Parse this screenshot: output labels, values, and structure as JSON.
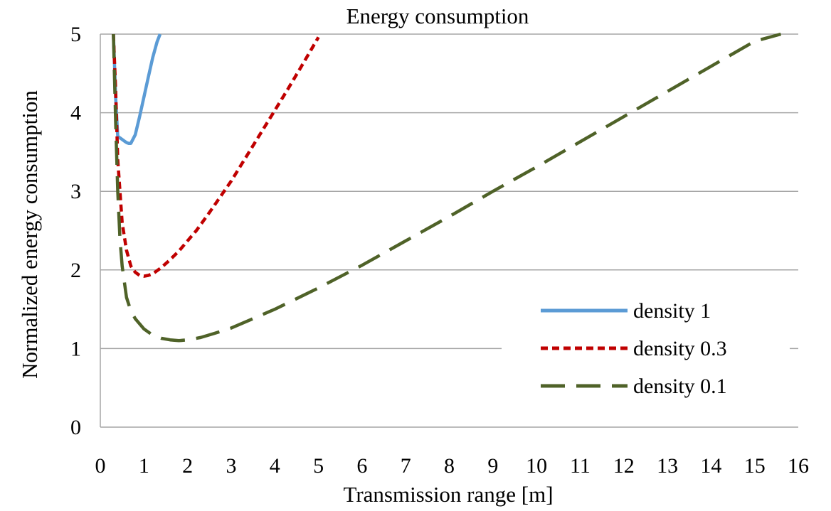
{
  "chart_data": {
    "type": "line",
    "title": "Energy consumption",
    "xlabel": "Transmission range [m]",
    "ylabel": "Normalized energy consumption",
    "xlim": [
      0,
      16
    ],
    "ylim": [
      0,
      5
    ],
    "xticks": [
      0,
      1,
      2,
      3,
      4,
      5,
      6,
      7,
      8,
      9,
      10,
      11,
      12,
      13,
      14,
      15,
      16
    ],
    "yticks": [
      0,
      1,
      2,
      3,
      4,
      5
    ],
    "grid": "horizontal",
    "legend_position": "right",
    "series": [
      {
        "name": "density 1",
        "color": "#5b9bd5",
        "style": "solid",
        "x": [
          0.3,
          0.32,
          0.35,
          0.4,
          0.45,
          0.5,
          0.55,
          0.6,
          0.65,
          0.7,
          0.8,
          0.9,
          1.0,
          1.1,
          1.2,
          1.3,
          1.37
        ],
        "y": [
          5.0,
          4.7,
          4.2,
          3.7,
          3.68,
          3.66,
          3.64,
          3.62,
          3.61,
          3.61,
          3.72,
          3.95,
          4.2,
          4.45,
          4.7,
          4.9,
          5.0
        ]
      },
      {
        "name": "density 0.3",
        "color": "#c00000",
        "style": "dash",
        "x": [
          0.3,
          0.35,
          0.4,
          0.5,
          0.6,
          0.7,
          0.8,
          0.9,
          1.0,
          1.1,
          1.2,
          1.4,
          1.6,
          1.8,
          2.0,
          2.2,
          2.5,
          2.8,
          3.0,
          3.3,
          3.6,
          4.0,
          4.3,
          4.6,
          5.0
        ],
        "y": [
          5.0,
          4.3,
          3.4,
          2.6,
          2.25,
          2.05,
          1.97,
          1.93,
          1.92,
          1.93,
          1.95,
          2.03,
          2.13,
          2.24,
          2.37,
          2.5,
          2.73,
          2.97,
          3.13,
          3.4,
          3.67,
          4.03,
          4.3,
          4.58,
          4.96
        ]
      },
      {
        "name": "density 0.1",
        "color": "#4f6228",
        "style": "longdash",
        "x": [
          0.3,
          0.35,
          0.4,
          0.45,
          0.5,
          0.6,
          0.7,
          0.8,
          1.0,
          1.2,
          1.4,
          1.6,
          1.8,
          2.0,
          2.3,
          2.6,
          3.0,
          3.5,
          4.0,
          5.0,
          6.0,
          7.0,
          8.0,
          9.0,
          10.0,
          11.0,
          12.0,
          13.0,
          14.0,
          15.0,
          15.6
        ],
        "y": [
          5.0,
          3.9,
          3.0,
          2.4,
          2.05,
          1.65,
          1.48,
          1.38,
          1.25,
          1.17,
          1.13,
          1.11,
          1.1,
          1.11,
          1.14,
          1.19,
          1.26,
          1.38,
          1.5,
          1.77,
          2.06,
          2.37,
          2.68,
          3.0,
          3.31,
          3.63,
          3.95,
          4.27,
          4.59,
          4.91,
          5.0
        ]
      }
    ]
  }
}
